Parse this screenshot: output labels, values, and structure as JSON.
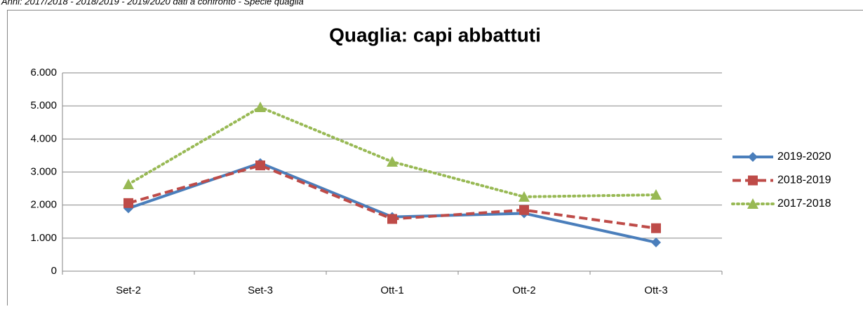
{
  "header": {
    "text": "Anni: 2017/2018 - 2018/2019 - 2019/2020 dati a confronto - Specie quaglia"
  },
  "chart_data": {
    "type": "line",
    "title": "Quaglia: capi abbattuti",
    "categories": [
      "Set-2",
      "Set-3",
      "Ott-1",
      "Ott-2",
      "Ott-3"
    ],
    "series": [
      {
        "name": "2019-2020",
        "color": "#4a7ebb",
        "marker": "diamond",
        "dash": "solid",
        "values": [
          1900,
          3270,
          1640,
          1750,
          870
        ]
      },
      {
        "name": "2018-2019",
        "color": "#be4b48",
        "marker": "square",
        "dash": "dashed",
        "values": [
          2060,
          3200,
          1580,
          1850,
          1300
        ]
      },
      {
        "name": "2017-2018",
        "color": "#98b954",
        "marker": "triangle",
        "dash": "dotted",
        "values": [
          2630,
          4960,
          3310,
          2250,
          2310
        ]
      }
    ],
    "ylim": [
      0,
      6000
    ],
    "yticks": [
      0,
      {
        "value": 1000,
        "label": "1.000"
      },
      {
        "value": 2000,
        "label": "2.000"
      },
      {
        "value": 3000,
        "label": "3.000"
      },
      {
        "value": 4000,
        "label": "4.000"
      },
      {
        "value": 5000,
        "label": "5.000"
      },
      {
        "value": 6000,
        "label": "6.000"
      }
    ],
    "grid": true,
    "legend": "right"
  }
}
